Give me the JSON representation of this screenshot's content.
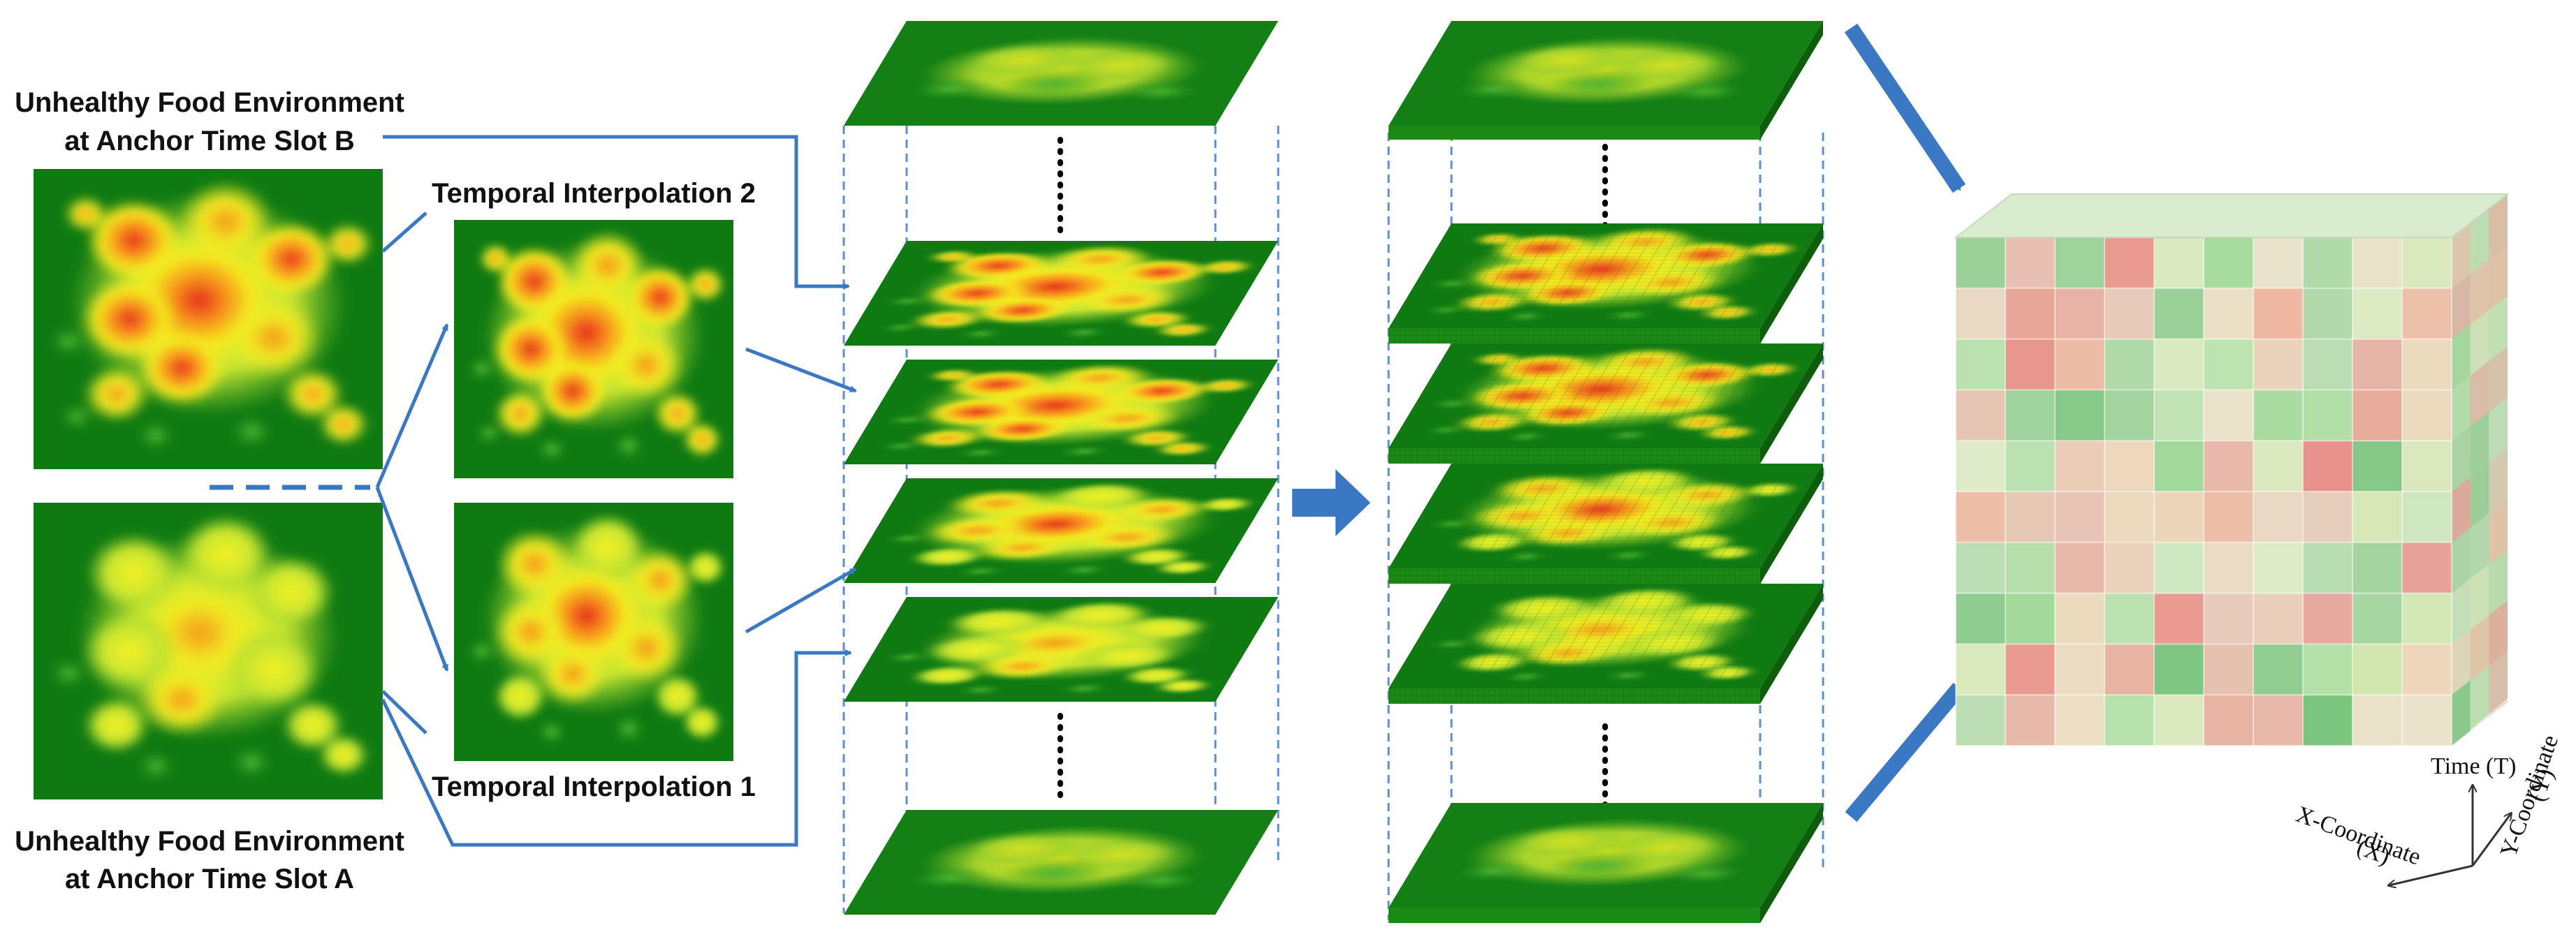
{
  "labels": {
    "slot_b_line1": "Unhealthy Food Environment",
    "slot_b_line2": "at Anchor Time Slot B",
    "slot_a_line1": "Unhealthy Food Environment",
    "slot_a_line2": "at Anchor Time Slot A",
    "interp2": "Temporal Interpolation 2",
    "interp1": "Temporal Interpolation 1"
  },
  "axes": {
    "time": "Time (T)",
    "x_line1": "X-Coordinate",
    "x_line2": "(X)",
    "y_line1": "Y-Coordinate",
    "y_line2": "(Y)"
  },
  "colors": {
    "background": "#ffffff",
    "field_dark": "#0f7a12",
    "field_mid": "#33a81c",
    "field_yellow": "#f2ef1e",
    "field_orange": "#f7a21b",
    "field_red": "#e8381c",
    "arrow_blue": "#3b78c4",
    "dashed_blue": "#5b8fd1",
    "dotted": "#000000"
  }
}
